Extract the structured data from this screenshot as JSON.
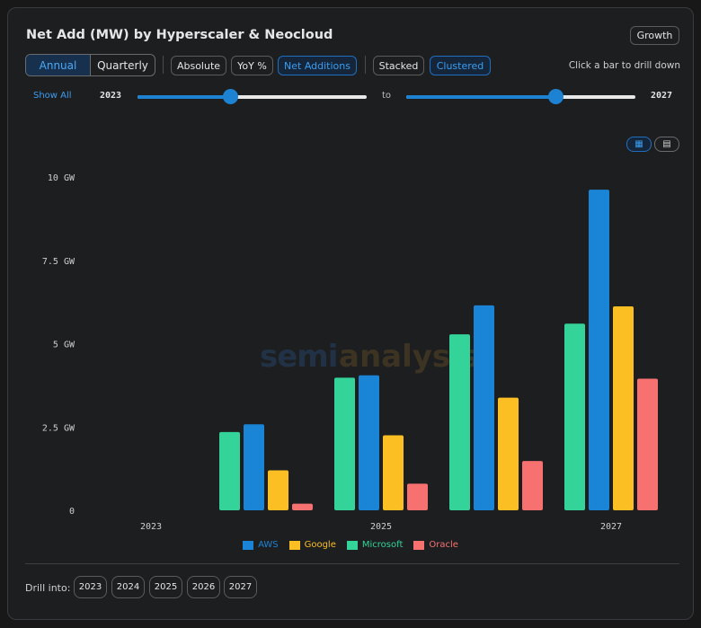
{
  "header": {
    "title": "Net Add (MW) by Hyperscaler & Neocloud",
    "growth_label": "Growth"
  },
  "toolbar": {
    "period": {
      "annual": "Annual",
      "quarterly": "Quarterly",
      "selected": "Annual"
    },
    "measure": {
      "absolute": "Absolute",
      "yoy": "YoY %",
      "net_additions": "Net Additions",
      "selected": "Net Additions"
    },
    "layout": {
      "stacked": "Stacked",
      "clustered": "Clustered",
      "selected": "Clustered"
    },
    "hint": "Click a bar to drill down"
  },
  "range": {
    "show_all": "Show All",
    "start": "2023",
    "to": "to",
    "end": "2027"
  },
  "watermark": {
    "left": "semi",
    "right": "analysis"
  },
  "colors": {
    "AWS": "#1a84d6",
    "Google": "#fbbf24",
    "Microsoft": "#34d399",
    "Oracle": "#f87171",
    "accent": "#3a9df0"
  },
  "chart_data": {
    "type": "bar",
    "layout": "clustered",
    "categories": [
      "2023",
      "2024",
      "2025",
      "2026",
      "2027"
    ],
    "x_tick_labels": [
      "2023",
      "2025",
      "2027"
    ],
    "ylim": [
      0,
      10
    ],
    "y_ticks": [
      0,
      2.5,
      5,
      7.5,
      10
    ],
    "y_tick_labels": [
      "0",
      "2.5 GW",
      "5 GW",
      "7.5 GW",
      "10 GW"
    ],
    "series": [
      {
        "name": "Microsoft",
        "values": [
          0,
          2.35,
          3.98,
          5.28,
          5.6
        ]
      },
      {
        "name": "AWS",
        "values": [
          0,
          2.58,
          4.05,
          6.15,
          9.62
        ]
      },
      {
        "name": "Google",
        "values": [
          0,
          1.2,
          2.25,
          3.38,
          6.12
        ]
      },
      {
        "name": "Oracle",
        "values": [
          0,
          0.2,
          0.8,
          1.48,
          3.95
        ]
      }
    ],
    "legend": [
      "AWS",
      "Google",
      "Microsoft",
      "Oracle"
    ],
    "legend_position": "bottom",
    "grid": false
  },
  "drill": {
    "label": "Drill into:",
    "years": [
      "2023",
      "2024",
      "2025",
      "2026",
      "2027"
    ]
  }
}
